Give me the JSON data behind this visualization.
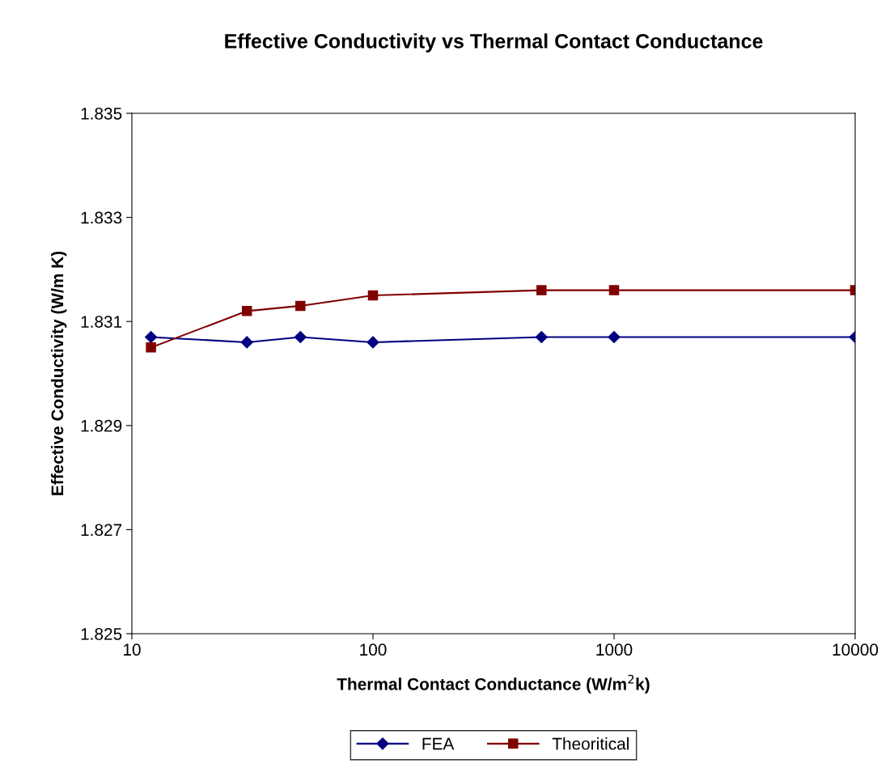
{
  "chart_data": {
    "type": "line",
    "title": "Effective Conductivity vs Thermal Contact Conductance",
    "xlabel": "Thermal Contact Conductance (W/m$^{2}$k)",
    "ylabel": "Effective Conductivity (W/m K)",
    "x": [
      12,
      30,
      50,
      100,
      500,
      1000,
      10000
    ],
    "series": [
      {
        "name": "FEA",
        "color": "#000080",
        "marker": "diamond",
        "values": [
          1.8307,
          1.8306,
          1.8307,
          1.8306,
          1.8307,
          1.8307,
          1.8307
        ]
      },
      {
        "name": "Theoritical",
        "color": "#800000",
        "marker": "square",
        "values": [
          1.8305,
          1.8312,
          1.8313,
          1.8315,
          1.8316,
          1.8316,
          1.8316
        ]
      }
    ],
    "log": "x",
    "xlim": [
      10,
      10000
    ],
    "xticks": [
      10,
      100,
      1000,
      10000
    ],
    "ylim": [
      1.825,
      1.835
    ],
    "yticks": [
      {
        "value": 1.825,
        "label": "1.825"
      },
      {
        "value": 1.827,
        "label": "1.827"
      },
      {
        "value": 1.829,
        "label": "1.829"
      },
      {
        "value": 1.831,
        "label": "1.831"
      },
      {
        "value": 1.833,
        "label": "1.833"
      },
      {
        "value": 1.835,
        "label": "1.835"
      }
    ],
    "grid": false,
    "legend": "bottom",
    "line_style": "solid"
  }
}
